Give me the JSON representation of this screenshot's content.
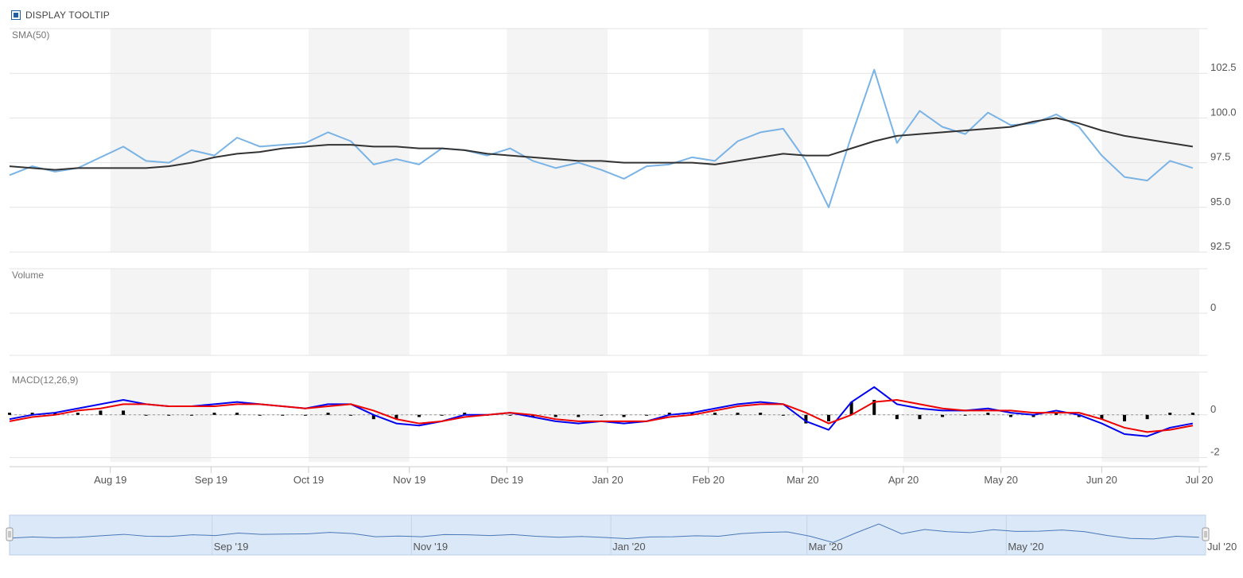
{
  "toolbar": {
    "tooltip_label": "DISPLAY TOOLTIP",
    "tooltip_checked": true
  },
  "colors": {
    "price": "#7ab3e6",
    "sma": "#333333",
    "macd": "#0000ee",
    "signal": "#ee0000",
    "histogram": "#000000",
    "band": "#f4f4f4",
    "grid": "#e3e3e3",
    "navigator_fill": "#dbe8f8",
    "navigator_line": "#4a78b8"
  },
  "chart_data": [
    {
      "type": "line",
      "panel": "price",
      "title": "SMA(50)",
      "x": [
        "2019-07-01",
        "2019-07-08",
        "2019-07-15",
        "2019-07-22",
        "2019-07-29",
        "2019-08-05",
        "2019-08-12",
        "2019-08-19",
        "2019-08-26",
        "2019-09-02",
        "2019-09-09",
        "2019-09-16",
        "2019-09-23",
        "2019-09-30",
        "2019-10-07",
        "2019-10-14",
        "2019-10-21",
        "2019-10-28",
        "2019-11-04",
        "2019-11-11",
        "2019-11-18",
        "2019-11-25",
        "2019-12-02",
        "2019-12-09",
        "2019-12-16",
        "2019-12-23",
        "2019-12-30",
        "2020-01-06",
        "2020-01-13",
        "2020-01-20",
        "2020-01-27",
        "2020-02-03",
        "2020-02-10",
        "2020-02-17",
        "2020-02-24",
        "2020-03-02",
        "2020-03-09",
        "2020-03-16",
        "2020-03-23",
        "2020-03-30",
        "2020-04-06",
        "2020-04-13",
        "2020-04-20",
        "2020-04-27",
        "2020-05-04",
        "2020-05-11",
        "2020-05-18",
        "2020-05-25",
        "2020-06-01",
        "2020-06-08",
        "2020-06-15",
        "2020-06-22",
        "2020-06-29"
      ],
      "series": [
        {
          "values": [
            96.8,
            97.3,
            97.0,
            97.2,
            97.8,
            98.4,
            97.6,
            97.5,
            98.2,
            97.9,
            98.9,
            98.4,
            98.5,
            98.6,
            99.2,
            98.7,
            97.4,
            97.7,
            97.4,
            98.3,
            98.2,
            97.9,
            98.3,
            97.6,
            97.2,
            97.5,
            97.1,
            96.6,
            97.3,
            97.4,
            97.8,
            97.6,
            98.7,
            99.2,
            99.4,
            97.6,
            95.0,
            99.0,
            102.7,
            98.6,
            100.4,
            99.5,
            99.1,
            100.3,
            99.6,
            99.7,
            100.2,
            99.5,
            97.9,
            96.7,
            96.5,
            97.6,
            97.2
          ]
        },
        {
          "values": [
            97.3,
            97.2,
            97.1,
            97.2,
            97.2,
            97.2,
            97.2,
            97.3,
            97.5,
            97.8,
            98.0,
            98.1,
            98.3,
            98.4,
            98.5,
            98.5,
            98.4,
            98.4,
            98.3,
            98.3,
            98.2,
            98.0,
            97.9,
            97.8,
            97.7,
            97.6,
            97.6,
            97.5,
            97.5,
            97.5,
            97.5,
            97.4,
            97.6,
            97.8,
            98.0,
            97.9,
            97.9,
            98.3,
            98.7,
            99.0,
            99.1,
            99.2,
            99.3,
            99.4,
            99.5,
            99.8,
            100.0,
            99.7,
            99.3,
            99.0,
            98.8,
            98.6,
            98.4
          ]
        }
      ],
      "ylim": [
        92.5,
        105.0
      ],
      "y_ticks": [
        "92.5",
        "95.0",
        "97.5",
        "100.0",
        "102.5"
      ]
    },
    {
      "type": "bar",
      "panel": "volume",
      "title": "Volume",
      "y_ticks": [
        "0"
      ]
    },
    {
      "type": "line",
      "panel": "macd",
      "title": "MACD(12,26,9)",
      "x_axis": "shared",
      "series": [
        {
          "values": [
            -0.2,
            0.0,
            0.1,
            0.3,
            0.5,
            0.7,
            0.5,
            0.4,
            0.4,
            0.5,
            0.6,
            0.5,
            0.4,
            0.3,
            0.5,
            0.5,
            0.0,
            -0.4,
            -0.5,
            -0.3,
            0.0,
            0.0,
            0.1,
            -0.1,
            -0.3,
            -0.4,
            -0.3,
            -0.4,
            -0.3,
            0.0,
            0.1,
            0.3,
            0.5,
            0.6,
            0.5,
            -0.3,
            -0.7,
            0.6,
            1.3,
            0.5,
            0.3,
            0.2,
            0.2,
            0.3,
            0.1,
            0.0,
            0.2,
            0.0,
            -0.4,
            -0.9,
            -1.0,
            -0.6,
            -0.4
          ]
        },
        {
          "values": [
            -0.3,
            -0.1,
            0.0,
            0.2,
            0.3,
            0.5,
            0.5,
            0.4,
            0.4,
            0.4,
            0.5,
            0.5,
            0.4,
            0.3,
            0.4,
            0.5,
            0.2,
            -0.2,
            -0.4,
            -0.3,
            -0.1,
            0.0,
            0.1,
            0.0,
            -0.2,
            -0.3,
            -0.3,
            -0.3,
            -0.3,
            -0.1,
            0.0,
            0.2,
            0.4,
            0.5,
            0.5,
            0.1,
            -0.4,
            0.0,
            0.6,
            0.7,
            0.5,
            0.3,
            0.2,
            0.2,
            0.2,
            0.1,
            0.1,
            0.1,
            -0.2,
            -0.6,
            -0.8,
            -0.7,
            -0.5
          ]
        },
        {
          "values": [
            0.1,
            0.1,
            0.1,
            0.1,
            0.2,
            0.2,
            0.0,
            0.0,
            0.0,
            0.1,
            0.1,
            0.0,
            0.0,
            0.0,
            0.1,
            0.0,
            -0.2,
            -0.2,
            -0.1,
            0.0,
            0.1,
            0.0,
            0.0,
            -0.1,
            -0.1,
            -0.1,
            0.0,
            -0.1,
            0.0,
            0.1,
            0.1,
            0.1,
            0.1,
            0.1,
            0.0,
            -0.4,
            -0.3,
            0.6,
            0.7,
            -0.2,
            -0.2,
            -0.1,
            0.0,
            0.1,
            -0.1,
            -0.1,
            0.1,
            -0.1,
            -0.2,
            -0.3,
            -0.2,
            0.1,
            0.1
          ]
        }
      ],
      "ylim": [
        -2.2,
        2.0
      ],
      "y_ticks": [
        "-2",
        "0"
      ]
    }
  ],
  "x_axis": {
    "labels": [
      "Aug 19",
      "Sep 19",
      "Oct 19",
      "Nov 19",
      "Dec 19",
      "Jan 20",
      "Feb 20",
      "Mar 20",
      "Apr 20",
      "May 20",
      "Jun 20",
      "Jul 20"
    ],
    "label_dates": [
      "2019-08-01",
      "2019-09-01",
      "2019-10-01",
      "2019-11-01",
      "2019-12-01",
      "2020-01-01",
      "2020-02-01",
      "2020-03-01",
      "2020-04-01",
      "2020-05-01",
      "2020-06-01",
      "2020-07-01"
    ],
    "shaded_months": [
      "2019-08",
      "2019-10",
      "2019-12",
      "2020-02",
      "2020-04",
      "2020-06"
    ]
  },
  "navigator": {
    "labels": [
      "Sep '19",
      "Nov '19",
      "Jan '20",
      "Mar '20",
      "May '20",
      "Jul '20"
    ],
    "label_dates": [
      "2019-09-01",
      "2019-11-01",
      "2020-01-01",
      "2020-03-01",
      "2020-05-01",
      "2020-07-01"
    ]
  }
}
